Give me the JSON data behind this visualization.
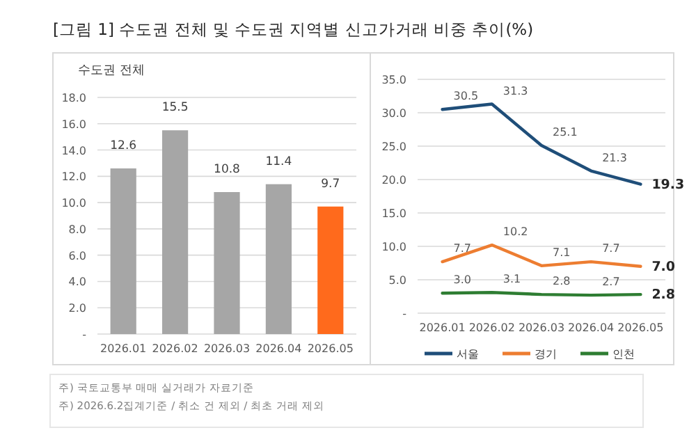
{
  "chart_data": [
    {
      "type": "bar",
      "title": "[그림 1] 수도권 전체 및 수도권 지역별 신고가거래 비중 추이(%)",
      "subtitle": "수도권 전체",
      "categories": [
        "2026.01",
        "2026.02",
        "2026.03",
        "2026.04",
        "2026.05"
      ],
      "values": [
        12.6,
        15.5,
        10.8,
        11.4,
        9.7
      ],
      "colors": [
        "#a6a6a6",
        "#a6a6a6",
        "#a6a6a6",
        "#a6a6a6",
        "#ff6a1c"
      ],
      "ylim": [
        0,
        18
      ],
      "yticks": [
        {
          "value": 0,
          "label": "-"
        },
        {
          "value": 2,
          "label": "2.0"
        },
        {
          "value": 4,
          "label": "4.0"
        },
        {
          "value": 6,
          "label": "6.0"
        },
        {
          "value": 8,
          "label": "8.0"
        },
        {
          "value": 10,
          "label": "10.0"
        },
        {
          "value": 12,
          "label": "12.0"
        },
        {
          "value": 14,
          "label": "14.0"
        },
        {
          "value": 16,
          "label": "16.0"
        },
        {
          "value": 18,
          "label": "18.0"
        }
      ],
      "grid": "y",
      "data_labels": true,
      "annotations": [
        "주) 국토교통부 매매 실거래가 자료기준",
        "주) 2026.6.2집계기준 / 취소 건 제외 / 최초 거래 제외"
      ]
    },
    {
      "type": "line",
      "categories": [
        "2026.01",
        "2026.02",
        "2026.03",
        "2026.04",
        "2026.05"
      ],
      "series": [
        {
          "name": "서울",
          "color": "#1f4e79",
          "values": [
            30.5,
            31.3,
            25.1,
            21.3,
            19.3
          ],
          "value_labels": [
            "30.5",
            "31.3",
            "25.1",
            "21.3",
            "19.3"
          ]
        },
        {
          "name": "경기",
          "color": "#ed7d31",
          "values": [
            7.7,
            10.2,
            7.1,
            7.7,
            7.0
          ],
          "value_labels": [
            "7.7",
            "10.2",
            "7.1",
            "7.7",
            "7.0"
          ]
        },
        {
          "name": "인천",
          "color": "#2e7d32",
          "values": [
            3.0,
            3.1,
            2.8,
            2.7,
            2.8
          ],
          "value_labels": [
            "3.0",
            "3.1",
            "2.8",
            "2.7",
            "2.8"
          ]
        }
      ],
      "ylim": [
        0,
        35
      ],
      "yticks": [
        {
          "value": 0,
          "label": "-"
        },
        {
          "value": 5,
          "label": "5.0"
        },
        {
          "value": 10,
          "label": "10.0"
        },
        {
          "value": 15,
          "label": "15.0"
        },
        {
          "value": 20,
          "label": "20.0"
        },
        {
          "value": 25,
          "label": "25.0"
        },
        {
          "value": 30,
          "label": "30.0"
        },
        {
          "value": 35,
          "label": "35.0"
        }
      ],
      "grid": "y",
      "legend": "bottom",
      "line_style": "solid",
      "marker": "none"
    }
  ]
}
